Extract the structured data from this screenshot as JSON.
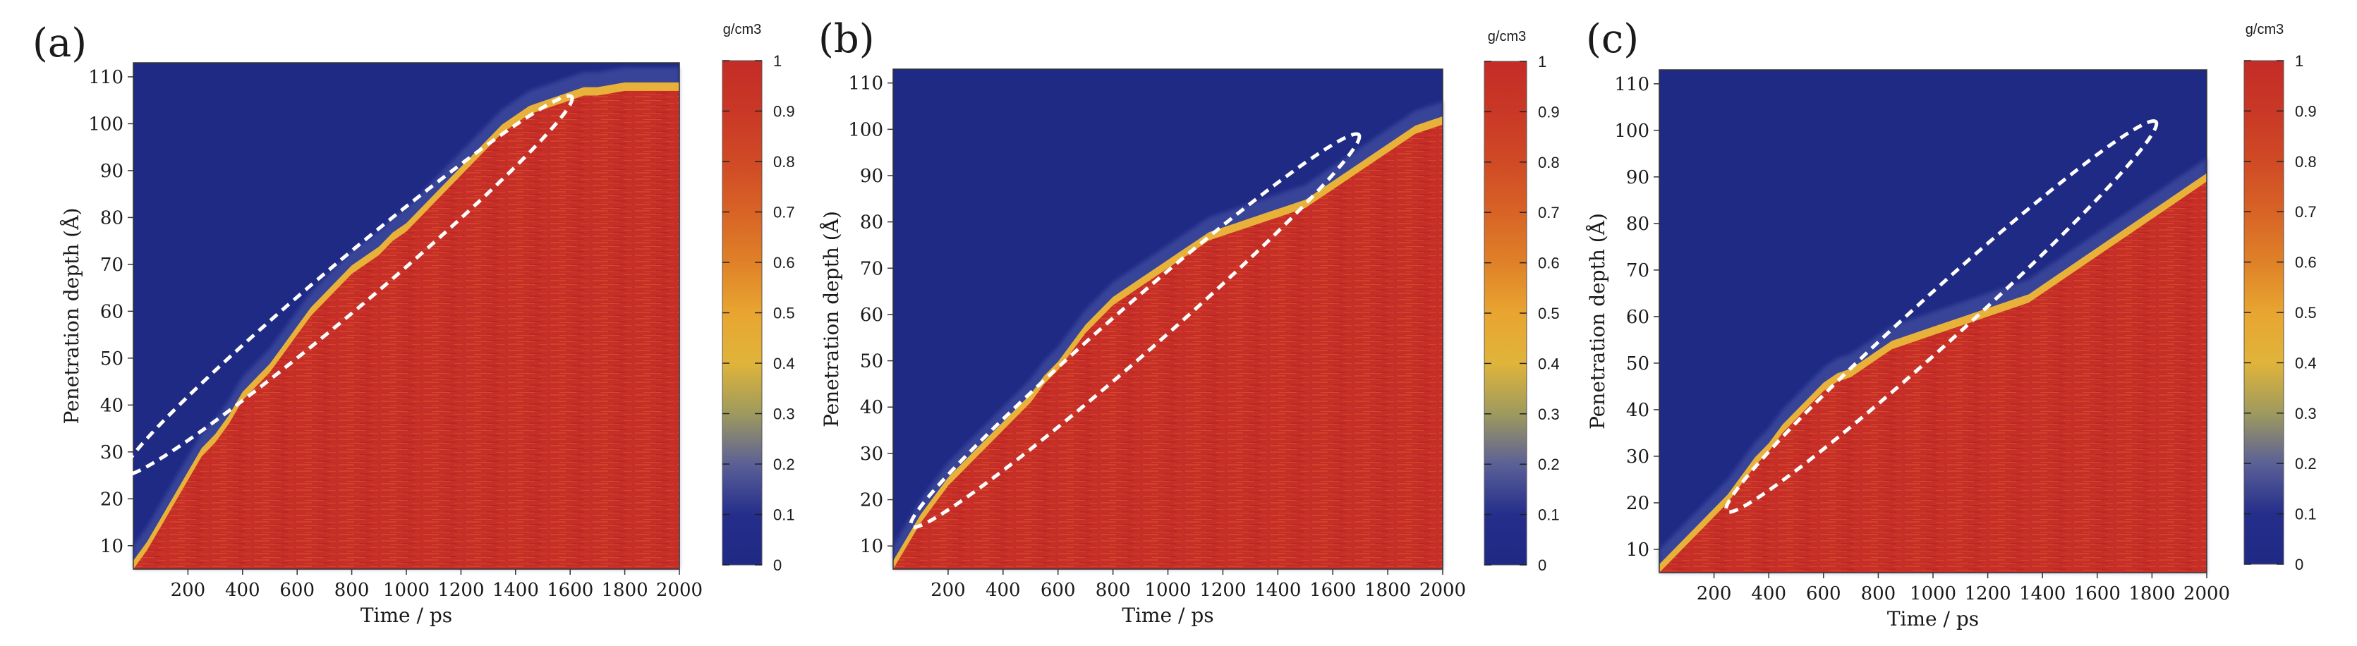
{
  "figure": {
    "panel_count": 3
  },
  "chart_data": [
    {
      "panel_label": "(a)",
      "type": "heatmap",
      "xlabel": "Time / ps",
      "ylabel": "Penetration depth (Å)",
      "xlim": [
        0,
        2000
      ],
      "ylim": [
        5,
        113
      ],
      "xticks": [
        200,
        400,
        600,
        800,
        1000,
        1200,
        1400,
        1600,
        1800,
        2000
      ],
      "yticks": [
        10,
        20,
        30,
        40,
        50,
        60,
        70,
        80,
        90,
        100,
        110
      ],
      "colorbar": {
        "unit": "g/cm3",
        "min": 0,
        "max": 1,
        "ticks": [
          0,
          0.1,
          0.2,
          0.3,
          0.4,
          0.5,
          0.6,
          0.7,
          0.8,
          0.9,
          1
        ]
      },
      "front": {
        "x": [
          0,
          50,
          100,
          150,
          200,
          250,
          300,
          350,
          400,
          450,
          500,
          550,
          600,
          650,
          700,
          750,
          800,
          850,
          900,
          950,
          1000,
          1050,
          1100,
          1150,
          1200,
          1250,
          1300,
          1350,
          1400,
          1450,
          1500,
          1550,
          1600,
          1650,
          1700,
          1800,
          1900,
          2000
        ],
        "y": [
          5,
          9,
          14,
          19,
          24,
          29,
          32,
          36,
          41,
          44,
          47,
          51,
          55,
          59,
          62,
          65,
          68,
          70,
          72,
          75,
          77,
          80,
          83,
          86,
          89,
          92,
          95,
          98,
          100,
          102,
          103,
          104,
          105,
          106,
          106,
          107,
          107,
          107
        ]
      },
      "annotation": {
        "shape": "dashed-ellipse",
        "from": [
          0,
          27
        ],
        "to": [
          1570,
          104
        ]
      }
    },
    {
      "panel_label": "(b)",
      "type": "heatmap",
      "xlabel": "Time / ps",
      "ylabel": "Penetration depth (Å)",
      "xlim": [
        0,
        2000
      ],
      "ylim": [
        5,
        113
      ],
      "xticks": [
        200,
        400,
        600,
        800,
        1000,
        1200,
        1400,
        1600,
        1800,
        2000
      ],
      "yticks": [
        10,
        20,
        30,
        40,
        50,
        60,
        70,
        80,
        90,
        100,
        110
      ],
      "colorbar": {
        "unit": "g/cm3",
        "min": 0,
        "max": 1,
        "ticks": [
          0,
          0.1,
          0.2,
          0.3,
          0.4,
          0.5,
          0.6,
          0.7,
          0.8,
          0.9,
          1
        ]
      },
      "front": {
        "x": [
          0,
          50,
          100,
          150,
          200,
          250,
          300,
          350,
          400,
          450,
          500,
          550,
          600,
          650,
          700,
          750,
          800,
          850,
          900,
          950,
          1000,
          1050,
          1100,
          1150,
          1200,
          1250,
          1300,
          1350,
          1400,
          1450,
          1500,
          1550,
          1600,
          1650,
          1700,
          1750,
          1800,
          1850,
          1900,
          1950,
          2000
        ],
        "y": [
          5,
          10,
          15,
          19,
          23,
          26,
          29,
          32,
          35,
          38,
          41,
          45,
          48,
          52,
          56,
          59,
          62,
          64,
          66,
          68,
          70,
          72,
          74,
          76,
          77,
          78,
          79,
          80,
          81,
          82,
          83,
          85,
          87,
          89,
          91,
          93,
          95,
          97,
          99,
          100,
          101
        ]
      },
      "annotation": {
        "shape": "dashed-ellipse",
        "from": [
          100,
          16
        ],
        "to": [
          1660,
          97
        ]
      }
    },
    {
      "panel_label": "(c)",
      "type": "heatmap",
      "xlabel": "Time / ps",
      "ylabel": "Penetration depth (Å)",
      "xlim": [
        0,
        2000
      ],
      "ylim": [
        5,
        113
      ],
      "xticks": [
        200,
        400,
        600,
        800,
        1000,
        1200,
        1400,
        1600,
        1800,
        2000
      ],
      "yticks": [
        10,
        20,
        30,
        40,
        50,
        60,
        70,
        80,
        90,
        100,
        110
      ],
      "colorbar": {
        "unit": "g/cm3",
        "min": 0,
        "max": 1,
        "ticks": [
          0,
          0.1,
          0.2,
          0.3,
          0.4,
          0.5,
          0.6,
          0.7,
          0.8,
          0.9,
          1
        ]
      },
      "front": {
        "x": [
          0,
          50,
          100,
          150,
          200,
          250,
          300,
          350,
          400,
          450,
          500,
          550,
          600,
          650,
          700,
          750,
          800,
          850,
          900,
          950,
          1000,
          1050,
          1100,
          1150,
          1200,
          1250,
          1300,
          1350,
          1400,
          1450,
          1500,
          1550,
          1600,
          1650,
          1700,
          1750,
          1800,
          1850,
          1900,
          1950,
          2000
        ],
        "y": [
          5,
          8,
          11,
          14,
          17,
          20,
          24,
          28,
          31,
          35,
          38,
          41,
          44,
          46,
          47,
          49,
          51,
          53,
          54,
          55,
          56,
          57,
          58,
          59,
          60,
          61,
          62,
          63,
          65,
          67,
          69,
          71,
          73,
          75,
          77,
          79,
          81,
          83,
          85,
          87,
          89
        ]
      },
      "annotation": {
        "shape": "dashed-ellipse",
        "from": [
          280,
          20
        ],
        "to": [
          1780,
          100
        ]
      }
    }
  ]
}
